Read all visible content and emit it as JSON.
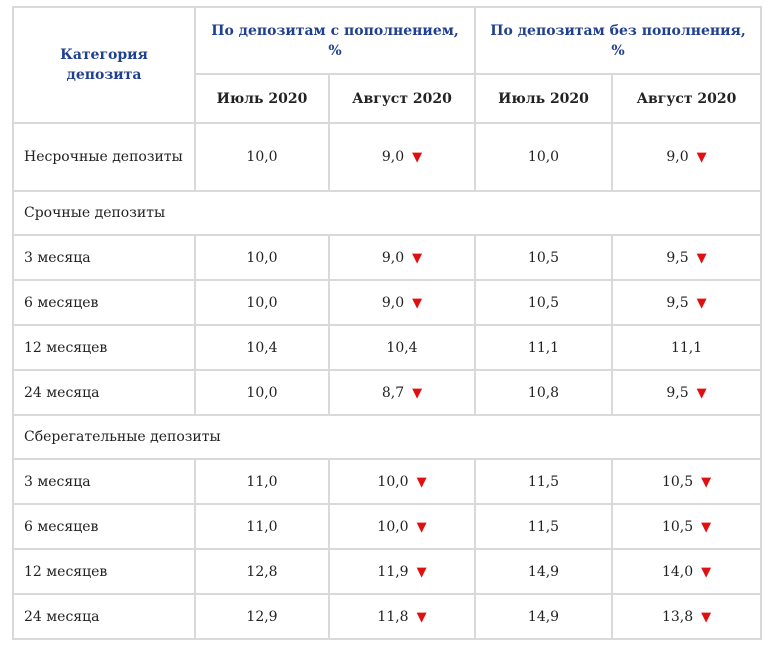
{
  "header": {
    "category": "Категория депозита",
    "group_with": "По депозитам с пополнением, %",
    "group_without": "По депозитам без пополнения, %",
    "months": [
      "Июль 2020",
      "Август 2020",
      "Июль 2020",
      "Август 2020"
    ]
  },
  "arrow": "▼",
  "rows": [
    {
      "label": "Несрочные депозиты",
      "v1": "10,0",
      "v2": "9,0",
      "v3": "10,0",
      "v4": "9,0"
    },
    {
      "section": "Срочные депозиты"
    },
    {
      "label": "3 месяца",
      "v1": "10,0",
      "v2": "9,0",
      "v3": "10,5",
      "v4": "9,5"
    },
    {
      "label": "6 месяцев",
      "v1": "10,0",
      "v2": "9,0",
      "v3": "10,5",
      "v4": "9,5"
    },
    {
      "label": "12 месяцев",
      "v1": "10,4",
      "v2": "10,4",
      "v3": "11,1",
      "v4": "11,1"
    },
    {
      "label": "24 месяца",
      "v1": "10,0",
      "v2": "8,7",
      "v3": "10,8",
      "v4": "9,5"
    },
    {
      "section": "Сберегательные депозиты"
    },
    {
      "label": "3 месяца",
      "v1": "11,0",
      "v2": "10,0",
      "v3": "11,5",
      "v4": "10,5"
    },
    {
      "label": "6 месяцев",
      "v1": "11,0",
      "v2": "10,0",
      "v3": "11,5",
      "v4": "10,5"
    },
    {
      "label": "12 месяцев",
      "v1": "12,8",
      "v2": "11,9",
      "v3": "14,9",
      "v4": "14,0"
    },
    {
      "label": "24 месяца",
      "v1": "12,9",
      "v2": "11,8",
      "v3": "14,9",
      "v4": "13,8"
    }
  ]
}
